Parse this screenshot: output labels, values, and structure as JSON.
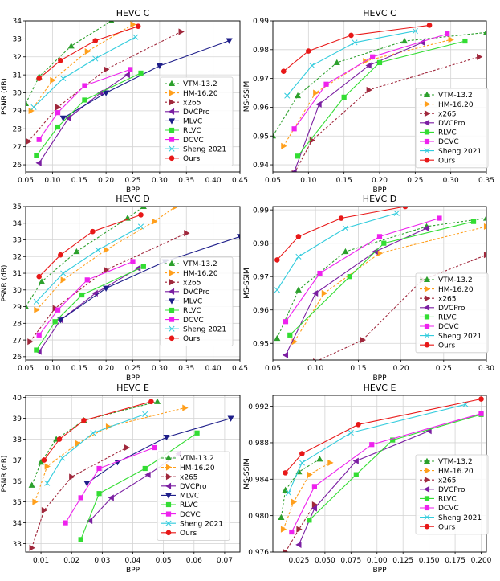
{
  "colors": {
    "VTM-13.2": "#2ca02c",
    "HM-16.20": "#ff9f1c",
    "x265": "#a0283c",
    "DVCPro": "#7b1fa2",
    "MLVC": "#1f1f8a",
    "RLVC": "#33dd33",
    "DCVC": "#ee22ee",
    "Sheng 2021": "#33ccdd",
    "Ours": "#e81818"
  },
  "chart_data": [
    {
      "type": "line",
      "title": "HEVC C",
      "xlabel": "BPP",
      "ylabel": "PSNR (dB)",
      "xlim": [
        0.05,
        0.45
      ],
      "ylim": [
        25.6,
        34.0
      ],
      "xticks": [
        0.05,
        0.1,
        0.15,
        0.2,
        0.25,
        0.3,
        0.35,
        0.4,
        0.45
      ],
      "xtick_labels": [
        "0.05",
        "0.10",
        "0.15",
        "0.20",
        "0.25",
        "0.30",
        "0.35",
        "0.40",
        "0.45"
      ],
      "yticks": [
        26,
        27,
        28,
        29,
        30,
        31,
        32,
        33,
        34
      ],
      "ytick_labels": [
        "26",
        "27",
        "28",
        "29",
        "30",
        "31",
        "32",
        "33",
        "34"
      ],
      "legend": "right",
      "series": [
        {
          "name": "VTM-13.2",
          "x": [
            0.05,
            0.075,
            0.135,
            0.21
          ],
          "y": [
            29.4,
            30.9,
            32.6,
            34.0
          ]
        },
        {
          "name": "HM-16.20",
          "x": [
            0.06,
            0.1,
            0.165,
            0.25
          ],
          "y": [
            29.0,
            30.7,
            32.3,
            33.8
          ]
        },
        {
          "name": "x265",
          "x": [
            0.055,
            0.11,
            0.2,
            0.34
          ],
          "y": [
            27.3,
            29.2,
            31.3,
            33.4
          ]
        },
        {
          "name": "DVCPro",
          "x": [
            0.075,
            0.13,
            0.19,
            0.24
          ],
          "y": [
            26.1,
            28.6,
            30.0,
            31.0
          ]
        },
        {
          "name": "MLVC",
          "x": [
            0.12,
            0.2,
            0.3,
            0.43
          ],
          "y": [
            28.6,
            30.0,
            31.5,
            32.9
          ]
        },
        {
          "name": "RLVC",
          "x": [
            0.07,
            0.11,
            0.16,
            0.265
          ],
          "y": [
            26.5,
            28.1,
            29.6,
            31.1
          ]
        },
        {
          "name": "DCVC",
          "x": [
            0.075,
            0.11,
            0.16,
            0.245
          ],
          "y": [
            27.4,
            28.9,
            30.4,
            31.3
          ]
        },
        {
          "name": "Sheng 2021",
          "x": [
            0.065,
            0.12,
            0.18,
            0.255
          ],
          "y": [
            29.2,
            30.8,
            31.9,
            33.1
          ]
        },
        {
          "name": "Ours",
          "x": [
            0.075,
            0.115,
            0.18,
            0.26
          ],
          "y": [
            30.8,
            31.8,
            32.9,
            33.7
          ]
        }
      ]
    },
    {
      "type": "line",
      "title": "HEVC C",
      "xlabel": "BPP",
      "ylabel": "MS-SSIM",
      "xlim": [
        0.05,
        0.35
      ],
      "ylim": [
        0.9375,
        0.99
      ],
      "xticks": [
        0.05,
        0.1,
        0.15,
        0.2,
        0.25,
        0.3,
        0.35
      ],
      "xtick_labels": [
        "0.05",
        "0.10",
        "0.15",
        "0.20",
        "0.25",
        "0.30",
        "0.35"
      ],
      "yticks": [
        0.94,
        0.95,
        0.96,
        0.97,
        0.98,
        0.99
      ],
      "ytick_labels": [
        "0.94",
        "0.95",
        "0.96",
        "0.97",
        "0.98",
        "0.99"
      ],
      "legend": "bottom-right",
      "series": [
        {
          "name": "VTM-13.2",
          "x": [
            0.05,
            0.085,
            0.14,
            0.235,
            0.35
          ],
          "y": [
            0.95,
            0.964,
            0.9755,
            0.983,
            0.986
          ]
        },
        {
          "name": "HM-16.20",
          "x": [
            0.065,
            0.11,
            0.18,
            0.3
          ],
          "y": [
            0.9465,
            0.965,
            0.976,
            0.9835
          ]
        },
        {
          "name": "x265",
          "x": [
            0.08,
            0.105,
            0.185,
            0.34
          ],
          "y": [
            0.937,
            0.9485,
            0.966,
            0.9775
          ]
        },
        {
          "name": "DVCPro",
          "x": [
            0.08,
            0.115,
            0.185,
            0.26
          ],
          "y": [
            0.9375,
            0.961,
            0.9745,
            0.9825
          ]
        },
        {
          "name": "RLVC",
          "x": [
            0.085,
            0.15,
            0.2,
            0.32
          ],
          "y": [
            0.943,
            0.9635,
            0.9755,
            0.983
          ]
        },
        {
          "name": "DCVC",
          "x": [
            0.08,
            0.125,
            0.19,
            0.295
          ],
          "y": [
            0.9525,
            0.968,
            0.9775,
            0.9855
          ]
        },
        {
          "name": "Sheng 2021",
          "x": [
            0.07,
            0.105,
            0.165,
            0.25
          ],
          "y": [
            0.964,
            0.9745,
            0.9825,
            0.9865
          ]
        },
        {
          "name": "Ours",
          "x": [
            0.065,
            0.1,
            0.16,
            0.27
          ],
          "y": [
            0.9725,
            0.9795,
            0.985,
            0.9885
          ]
        }
      ]
    },
    {
      "type": "line",
      "title": "HEVC D",
      "xlabel": "BPP",
      "ylabel": "PSNR (dB)",
      "xlim": [
        0.05,
        0.45
      ],
      "ylim": [
        25.8,
        35.0
      ],
      "xticks": [
        0.05,
        0.1,
        0.15,
        0.2,
        0.25,
        0.3,
        0.35,
        0.4,
        0.45
      ],
      "xtick_labels": [
        "0.05",
        "0.10",
        "0.15",
        "0.20",
        "0.25",
        "0.30",
        "0.35",
        "0.40",
        "0.45"
      ],
      "yticks": [
        26,
        27,
        28,
        29,
        30,
        31,
        32,
        33,
        34,
        35
      ],
      "ytick_labels": [
        "26",
        "27",
        "28",
        "29",
        "30",
        "31",
        "32",
        "33",
        "34",
        "35"
      ],
      "legend": "right",
      "series": [
        {
          "name": "VTM-13.2",
          "x": [
            0.05,
            0.08,
            0.145,
            0.24,
            0.27
          ],
          "y": [
            29.0,
            30.5,
            32.3,
            34.3,
            35.0
          ]
        },
        {
          "name": "HM-16.20",
          "x": [
            0.07,
            0.12,
            0.2,
            0.29,
            0.33
          ],
          "y": [
            28.8,
            30.6,
            32.4,
            34.1,
            35.0
          ]
        },
        {
          "name": "x265",
          "x": [
            0.058,
            0.105,
            0.2,
            0.35
          ],
          "y": [
            26.9,
            28.9,
            31.2,
            33.4
          ]
        },
        {
          "name": "DVCPro",
          "x": [
            0.075,
            0.115,
            0.18,
            0.26
          ],
          "y": [
            26.3,
            28.2,
            29.8,
            31.3
          ]
        },
        {
          "name": "MLVC",
          "x": [
            0.115,
            0.2,
            0.31,
            0.45
          ],
          "y": [
            28.2,
            30.1,
            31.7,
            33.2
          ]
        },
        {
          "name": "RLVC",
          "x": [
            0.07,
            0.105,
            0.155,
            0.27
          ],
          "y": [
            26.4,
            28.1,
            29.7,
            31.4
          ]
        },
        {
          "name": "DCVC",
          "x": [
            0.075,
            0.11,
            0.165,
            0.25
          ],
          "y": [
            27.3,
            28.8,
            30.6,
            31.7
          ]
        },
        {
          "name": "Sheng 2021",
          "x": [
            0.07,
            0.12,
            0.185,
            0.265
          ],
          "y": [
            29.3,
            31.0,
            32.4,
            33.8
          ]
        },
        {
          "name": "Ours",
          "x": [
            0.075,
            0.115,
            0.175,
            0.265
          ],
          "y": [
            30.8,
            32.1,
            33.5,
            34.5
          ]
        }
      ]
    },
    {
      "type": "line",
      "title": "HEVC D",
      "xlabel": "BPP",
      "ylabel": "MS-SSIM",
      "xlim": [
        0.05,
        0.3
      ],
      "ylim": [
        0.945,
        0.991
      ],
      "xticks": [
        0.05,
        0.1,
        0.15,
        0.2,
        0.25,
        0.3
      ],
      "xtick_labels": [
        "0.05",
        "0.10",
        "0.15",
        "0.20",
        "0.25",
        "0.30"
      ],
      "yticks": [
        0.95,
        0.96,
        0.97,
        0.98,
        0.99
      ],
      "ytick_labels": [
        "0.95",
        "0.96",
        "0.97",
        "0.98",
        "0.99"
      ],
      "legend": "bottom-right",
      "series": [
        {
          "name": "VTM-13.2",
          "x": [
            0.055,
            0.08,
            0.135,
            0.23,
            0.3
          ],
          "y": [
            0.9515,
            0.966,
            0.9775,
            0.985,
            0.9875
          ]
        },
        {
          "name": "HM-16.20",
          "x": [
            0.075,
            0.11,
            0.175,
            0.3
          ],
          "y": [
            0.9505,
            0.965,
            0.977,
            0.985
          ]
        },
        {
          "name": "x265",
          "x": [
            0.1,
            0.155,
            0.225,
            0.3
          ],
          "y": [
            0.9445,
            0.951,
            0.969,
            0.9765
          ]
        },
        {
          "name": "DVCPro",
          "x": [
            0.065,
            0.1,
            0.17,
            0.23
          ],
          "y": [
            0.9465,
            0.965,
            0.9775,
            0.9845
          ]
        },
        {
          "name": "RLVC",
          "x": [
            0.07,
            0.14,
            0.18,
            0.285
          ],
          "y": [
            0.9525,
            0.97,
            0.98,
            0.9865
          ]
        },
        {
          "name": "DCVC",
          "x": [
            0.065,
            0.105,
            0.175,
            0.245
          ],
          "y": [
            0.9565,
            0.971,
            0.982,
            0.9875
          ]
        },
        {
          "name": "Sheng 2021",
          "x": [
            0.055,
            0.08,
            0.135,
            0.195
          ],
          "y": [
            0.966,
            0.976,
            0.9845,
            0.989
          ]
        },
        {
          "name": "Ours",
          "x": [
            0.055,
            0.08,
            0.13,
            0.205
          ],
          "y": [
            0.975,
            0.982,
            0.9875,
            0.991
          ]
        }
      ]
    },
    {
      "type": "line",
      "title": "HEVC E",
      "xlabel": "BPP",
      "ylabel": "PSNR (dB)",
      "xlim": [
        0.005,
        0.075
      ],
      "ylim": [
        32.6,
        40.1
      ],
      "xticks": [
        0.01,
        0.02,
        0.03,
        0.04,
        0.05,
        0.06,
        0.07
      ],
      "xtick_labels": [
        "0.01",
        "0.02",
        "0.03",
        "0.04",
        "0.05",
        "0.06",
        "0.07"
      ],
      "yticks": [
        33,
        34,
        35,
        36,
        37,
        38,
        39,
        40
      ],
      "ytick_labels": [
        "33",
        "34",
        "35",
        "36",
        "37",
        "38",
        "39",
        "40"
      ],
      "legend": "bottom-right",
      "series": [
        {
          "name": "VTM-13.2",
          "x": [
            0.007,
            0.01,
            0.015,
            0.024,
            0.048
          ],
          "y": [
            35.8,
            36.9,
            38.0,
            38.9,
            39.8
          ]
        },
        {
          "name": "HM-16.20",
          "x": [
            0.008,
            0.012,
            0.022,
            0.032,
            0.057
          ],
          "y": [
            35.0,
            36.7,
            37.8,
            38.6,
            39.5
          ]
        },
        {
          "name": "x265",
          "x": [
            0.007,
            0.011,
            0.02,
            0.038
          ],
          "y": [
            32.8,
            34.6,
            36.2,
            37.6
          ]
        },
        {
          "name": "DVCPro",
          "x": [
            0.026,
            0.033,
            0.045,
            0.055
          ],
          "y": [
            34.1,
            35.2,
            36.3,
            37.3
          ]
        },
        {
          "name": "MLVC",
          "x": [
            0.025,
            0.035,
            0.051,
            0.072
          ],
          "y": [
            35.9,
            36.9,
            38.1,
            39.0
          ]
        },
        {
          "name": "RLVC",
          "x": [
            0.023,
            0.029,
            0.044,
            0.061
          ],
          "y": [
            33.2,
            35.4,
            36.6,
            38.3
          ]
        },
        {
          "name": "DCVC",
          "x": [
            0.018,
            0.023,
            0.029,
            0.047
          ],
          "y": [
            34.0,
            35.2,
            36.6,
            37.6
          ]
        },
        {
          "name": "Sheng 2021",
          "x": [
            0.012,
            0.017,
            0.027,
            0.044
          ],
          "y": [
            35.9,
            37.1,
            38.3,
            39.2
          ]
        },
        {
          "name": "Ours",
          "x": [
            0.011,
            0.016,
            0.024,
            0.046
          ],
          "y": [
            37.0,
            38.0,
            38.9,
            39.8
          ]
        }
      ]
    },
    {
      "type": "line",
      "title": "HEVC E",
      "xlabel": "BPP",
      "ylabel": "MS-SSIM",
      "xlim": [
        0.0,
        0.205
      ],
      "ylim": [
        0.976,
        0.9932
      ],
      "xticks": [
        0.025,
        0.05,
        0.075,
        0.1,
        0.125,
        0.15,
        0.175,
        0.2
      ],
      "xtick_labels": [
        "0.025",
        "0.050",
        "0.075",
        "0.100",
        "0.125",
        "0.150",
        "0.175",
        "0.200"
      ],
      "yticks": [
        0.976,
        0.98,
        0.984,
        0.988,
        0.992
      ],
      "ytick_labels": [
        "0.976",
        "0.980",
        "0.984",
        "0.988",
        "0.992"
      ],
      "legend": "bottom-right",
      "series": [
        {
          "name": "VTM-13.2",
          "x": [
            0.008,
            0.012,
            0.025,
            0.045
          ],
          "y": [
            0.9798,
            0.9828,
            0.9848,
            0.9862
          ]
        },
        {
          "name": "HM-16.20",
          "x": [
            0.01,
            0.02,
            0.035,
            0.055
          ],
          "y": [
            0.9785,
            0.9815,
            0.9845,
            0.9858
          ]
        },
        {
          "name": "x265",
          "x": [
            0.012,
            0.025,
            0.04
          ],
          "y": [
            0.976,
            0.9785,
            0.9812
          ]
        },
        {
          "name": "DVCPro",
          "x": [
            0.025,
            0.04,
            0.08,
            0.15
          ],
          "y": [
            0.9768,
            0.9808,
            0.986,
            0.9893
          ]
        },
        {
          "name": "RLVC",
          "x": [
            0.035,
            0.08,
            0.115,
            0.2
          ],
          "y": [
            0.9795,
            0.9845,
            0.9883,
            0.9911
          ]
        },
        {
          "name": "DCVC",
          "x": [
            0.018,
            0.04,
            0.095,
            0.2
          ],
          "y": [
            0.9782,
            0.9832,
            0.9878,
            0.9912
          ]
        },
        {
          "name": "Sheng 2021",
          "x": [
            0.015,
            0.028,
            0.075,
            0.185
          ],
          "y": [
            0.9825,
            0.9858,
            0.9891,
            0.9922
          ]
        },
        {
          "name": "Ours",
          "x": [
            0.012,
            0.028,
            0.082,
            0.2
          ],
          "y": [
            0.9847,
            0.9868,
            0.99,
            0.9928
          ]
        }
      ]
    }
  ]
}
